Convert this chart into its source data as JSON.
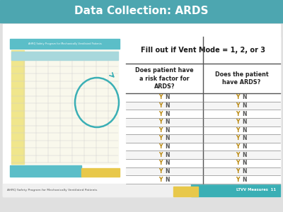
{
  "title": "Data Collection: ARDS",
  "title_color": "#ffffff",
  "header_bg": "#4da6b0",
  "slide_bg": "#e0e0e0",
  "inner_bg": "#f8f8f8",
  "table_header": "Fill out if Vent Mode = 1, 2, or 3",
  "col1_header": "Does patient have\na risk factor for\nARDS?",
  "col2_header": "Does the patient\nhave ARDS?",
  "num_rows": 11,
  "footer_left": "AHRQ Safety Program for Mechanically Ventilated Patients",
  "footer_right": "LTVV Measures  11",
  "footer_bg_teal": "#3aafb5",
  "footer_bg_yellow": "#e8c84a",
  "table_border_color": "#555555",
  "table_white": "#ffffff",
  "yn_color_y": "#b8860b",
  "yn_color_n": "#555555",
  "thumb_teal": "#5bbec8",
  "thumb_header_text_color": "#333333"
}
